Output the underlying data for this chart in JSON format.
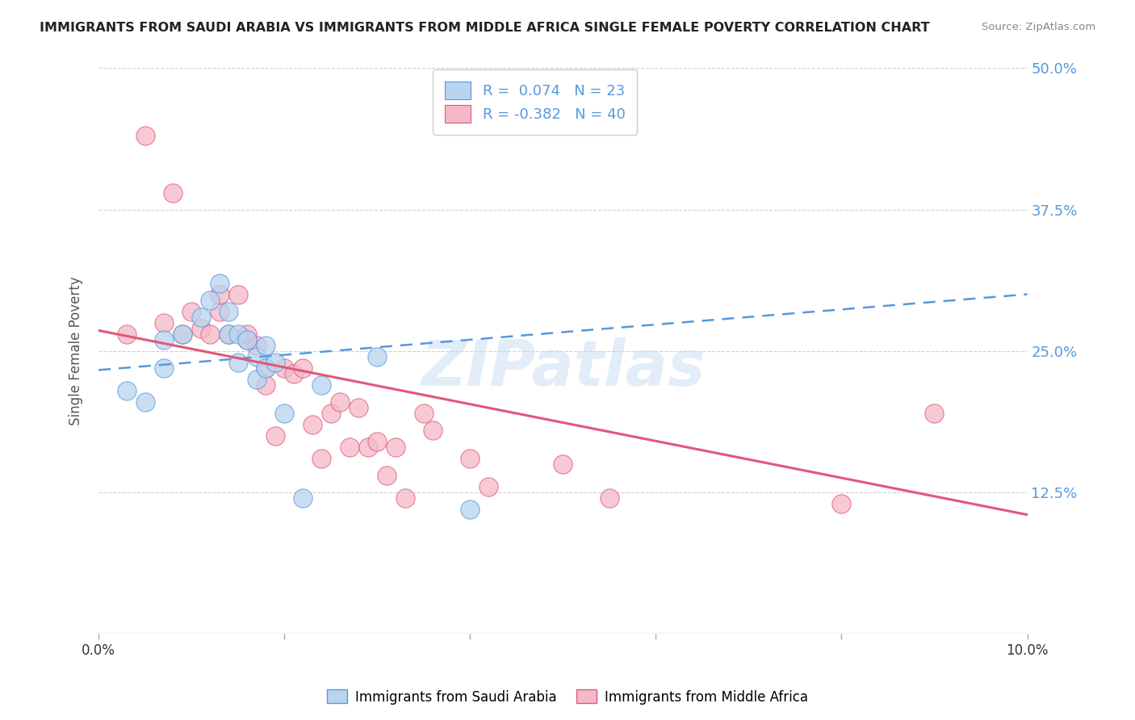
{
  "title": "IMMIGRANTS FROM SAUDI ARABIA VS IMMIGRANTS FROM MIDDLE AFRICA SINGLE FEMALE POVERTY CORRELATION CHART",
  "source": "Source: ZipAtlas.com",
  "ylabel": "Single Female Poverty",
  "xlim": [
    0.0,
    0.1
  ],
  "ylim": [
    0.0,
    0.5
  ],
  "xticks": [
    0.0,
    0.02,
    0.04,
    0.06,
    0.08,
    0.1
  ],
  "xticklabels": [
    "0.0%",
    "",
    "",
    "",
    "",
    "10.0%"
  ],
  "yticks": [
    0.0,
    0.125,
    0.25,
    0.375,
    0.5
  ],
  "yticklabels": [
    "",
    "12.5%",
    "25.0%",
    "37.5%",
    "50.0%"
  ],
  "saudi_color": "#b8d4ee",
  "africa_color": "#f5b8c8",
  "saudi_line_color": "#5599dd",
  "africa_line_color": "#e05878",
  "legend_R_label1": "R =  0.074   N = 23",
  "legend_R_label2": "R = -0.382   N = 40",
  "watermark": "ZIPatlas",
  "background_color": "#ffffff",
  "grid_color": "#cccccc",
  "axis_color": "#5599dd",
  "saudi_x": [
    0.003,
    0.005,
    0.007,
    0.007,
    0.009,
    0.011,
    0.012,
    0.013,
    0.014,
    0.014,
    0.015,
    0.015,
    0.016,
    0.017,
    0.017,
    0.018,
    0.018,
    0.019,
    0.02,
    0.022,
    0.024,
    0.03,
    0.04
  ],
  "saudi_y": [
    0.215,
    0.205,
    0.235,
    0.26,
    0.265,
    0.28,
    0.295,
    0.31,
    0.265,
    0.285,
    0.24,
    0.265,
    0.26,
    0.245,
    0.225,
    0.255,
    0.235,
    0.24,
    0.195,
    0.12,
    0.22,
    0.245,
    0.11
  ],
  "africa_x": [
    0.003,
    0.005,
    0.007,
    0.008,
    0.009,
    0.01,
    0.011,
    0.012,
    0.013,
    0.013,
    0.014,
    0.015,
    0.016,
    0.016,
    0.017,
    0.018,
    0.018,
    0.019,
    0.02,
    0.021,
    0.022,
    0.023,
    0.024,
    0.025,
    0.026,
    0.027,
    0.028,
    0.029,
    0.03,
    0.031,
    0.032,
    0.033,
    0.035,
    0.036,
    0.04,
    0.042,
    0.05,
    0.055,
    0.08,
    0.09
  ],
  "africa_y": [
    0.265,
    0.44,
    0.275,
    0.39,
    0.265,
    0.285,
    0.27,
    0.265,
    0.285,
    0.3,
    0.265,
    0.3,
    0.26,
    0.265,
    0.255,
    0.235,
    0.22,
    0.175,
    0.235,
    0.23,
    0.235,
    0.185,
    0.155,
    0.195,
    0.205,
    0.165,
    0.2,
    0.165,
    0.17,
    0.14,
    0.165,
    0.12,
    0.195,
    0.18,
    0.155,
    0.13,
    0.15,
    0.12,
    0.115,
    0.195
  ],
  "saudi_trend_x": [
    0.0,
    0.1
  ],
  "saudi_trend_y": [
    0.233,
    0.3
  ],
  "africa_trend_x": [
    0.0,
    0.1
  ],
  "africa_trend_y": [
    0.268,
    0.105
  ]
}
